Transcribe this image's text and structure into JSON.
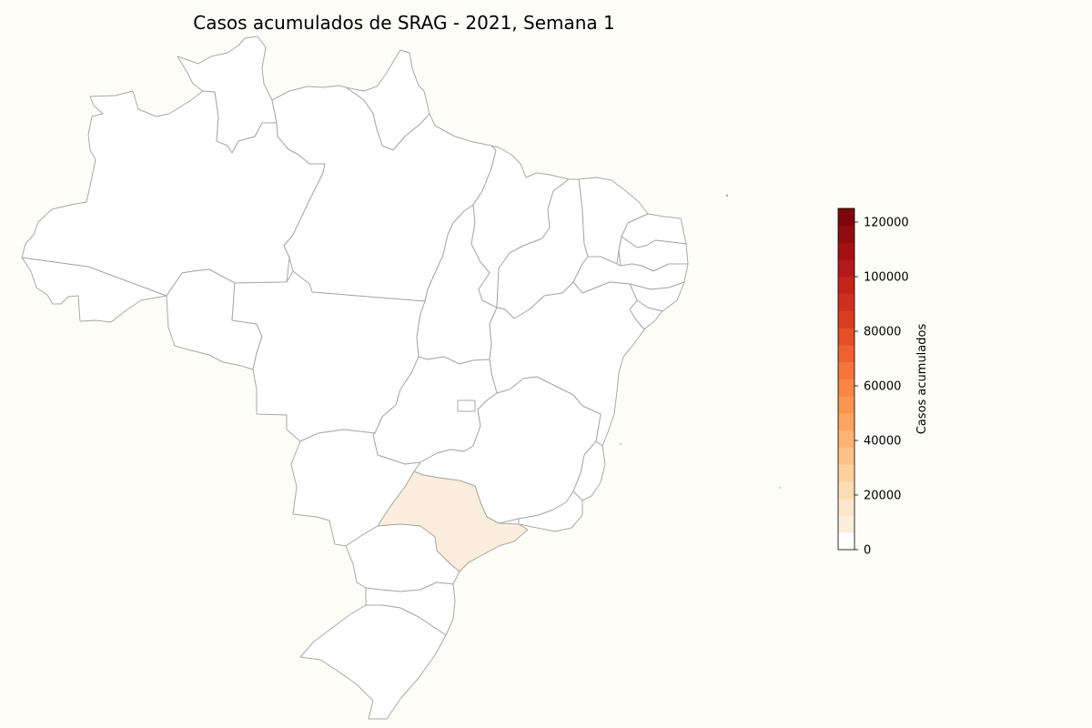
{
  "title": "Casos acumulados de SRAG - 2021, Semana 1",
  "colors": {
    "background": "#fffdf8",
    "border": "#a8a8a8",
    "no_data": "#ffffff"
  },
  "chart_data": {
    "type": "choropleth",
    "title": "Casos acumulados de SRAG - 2021, Semana 1",
    "colorbar": {
      "label": "Casos acumulados",
      "min": 0,
      "max": 125000,
      "ticks": [
        0,
        20000,
        40000,
        60000,
        80000,
        100000,
        120000
      ],
      "bins": 20,
      "colormap": [
        "#fff5eb",
        "#fee6ce",
        "#fdd0a2",
        "#fdae6b",
        "#fd8d3c",
        "#f16913",
        "#d94801",
        "#a63603",
        "#7f2704"
      ],
      "colors": [
        "#ffffff",
        "#fbeedd",
        "#fde6cc",
        "#fddbb4",
        "#fdd09d",
        "#fdc287",
        "#fdb374",
        "#fca462",
        "#fb9552",
        "#f98546",
        "#f5753c",
        "#ee6232",
        "#e54f2a",
        "#da3d22",
        "#cf2f1e",
        "#c2231b",
        "#b31919",
        "#a31115",
        "#910b10",
        "#7d060b"
      ]
    },
    "regions": [
      {
        "name": "AC",
        "value": 0
      },
      {
        "name": "AM",
        "value": 0
      },
      {
        "name": "RR",
        "value": 0
      },
      {
        "name": "AP",
        "value": 0
      },
      {
        "name": "PA",
        "value": 0
      },
      {
        "name": "RO",
        "value": 0
      },
      {
        "name": "MT",
        "value": 0
      },
      {
        "name": "TO",
        "value": 0
      },
      {
        "name": "MA",
        "value": 0
      },
      {
        "name": "PI",
        "value": 0
      },
      {
        "name": "CE",
        "value": 0
      },
      {
        "name": "RN",
        "value": 0
      },
      {
        "name": "PB",
        "value": 0
      },
      {
        "name": "PE",
        "value": 0
      },
      {
        "name": "AL",
        "value": 0
      },
      {
        "name": "SE",
        "value": 0
      },
      {
        "name": "BA",
        "value": 0
      },
      {
        "name": "GO",
        "value": 0
      },
      {
        "name": "DF",
        "value": 0
      },
      {
        "name": "MG",
        "value": 0
      },
      {
        "name": "ES",
        "value": 0
      },
      {
        "name": "RJ",
        "value": 0
      },
      {
        "name": "MS",
        "value": 0
      },
      {
        "name": "SP",
        "value": 8000
      },
      {
        "name": "PR",
        "value": 0
      },
      {
        "name": "SC",
        "value": 0
      },
      {
        "name": "RS",
        "value": 0
      }
    ]
  }
}
